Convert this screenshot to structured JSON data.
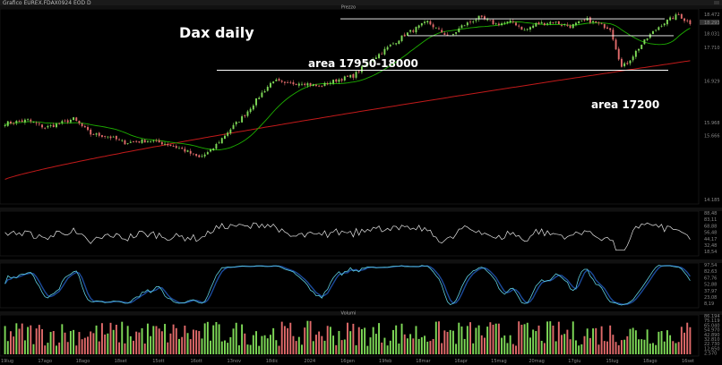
{
  "window": {
    "title": "Grafico EUREX.FDAX0924 EOD D"
  },
  "panels": {
    "price_title": "Prezzo",
    "volume_title": "Volumi"
  },
  "annotations": {
    "title": "Dax daily",
    "upper_level": "area 17950-18000",
    "lower_level": "area 17200"
  },
  "colors": {
    "background": "#000000",
    "up_candle": "#7ED957",
    "down_candle": "#E06A6A",
    "short_ma": "#1DB000",
    "long_ma": "#C21A1A",
    "rsi": "#E6E6E6",
    "stoch_k": "#5FD0E0",
    "stoch_d": "#1B4A9C",
    "level_lines": "#FFFFFF"
  },
  "chart_data": [
    {
      "type": "candlestick",
      "panel": "price",
      "y_ticks": [
        "18.472",
        "18.031",
        "17.710",
        "16.929",
        "15.968",
        "15.666",
        "14.185"
      ],
      "y_ticks_values": [
        18472,
        18031,
        17710,
        16929,
        15968,
        15666,
        14185
      ],
      "last_price_label": "18.293",
      "x_labels": [
        "19lug",
        "17ago",
        "18ago",
        "18set",
        "15ott",
        "16ott",
        "13nov",
        "18dic",
        "2024",
        "16gen",
        "19feb",
        "18mar",
        "16apr",
        "15mag",
        "20mag",
        "17giu",
        "15lug",
        "18ago",
        "16set"
      ],
      "waypoints": [
        [
          0,
          15950
        ],
        [
          8,
          16020
        ],
        [
          14,
          15850
        ],
        [
          18,
          15920
        ],
        [
          24,
          16050
        ],
        [
          30,
          15700
        ],
        [
          36,
          15650
        ],
        [
          42,
          15500
        ],
        [
          50,
          15550
        ],
        [
          56,
          15480
        ],
        [
          62,
          15350
        ],
        [
          68,
          15150
        ],
        [
          72,
          15300
        ],
        [
          78,
          15750
        ],
        [
          84,
          16150
        ],
        [
          90,
          16650
        ],
        [
          94,
          16950
        ],
        [
          98,
          16850
        ],
        [
          104,
          16900
        ],
        [
          110,
          16800
        ],
        [
          116,
          16950
        ],
        [
          122,
          17050
        ],
        [
          128,
          17400
        ],
        [
          134,
          17700
        ],
        [
          140,
          18000
        ],
        [
          144,
          18150
        ],
        [
          148,
          18300
        ],
        [
          152,
          18100
        ],
        [
          156,
          17950
        ],
        [
          160,
          18200
        ],
        [
          166,
          18400
        ],
        [
          172,
          18250
        ],
        [
          178,
          18300
        ],
        [
          182,
          18100
        ],
        [
          186,
          18250
        ],
        [
          192,
          18300
        ],
        [
          198,
          18200
        ],
        [
          204,
          18350
        ],
        [
          208,
          18250
        ],
        [
          212,
          18150
        ],
        [
          214,
          17700
        ],
        [
          216,
          17250
        ],
        [
          218,
          17350
        ],
        [
          222,
          17700
        ],
        [
          226,
          18000
        ],
        [
          230,
          18250
        ],
        [
          234,
          18400
        ],
        [
          236,
          18470
        ],
        [
          238,
          18350
        ],
        [
          240,
          18280
        ]
      ],
      "ma_short_period": 20,
      "ma_long_period": 200,
      "annotation_levels": [
        18372,
        17980,
        17180
      ]
    },
    {
      "type": "line",
      "panel": "rsi",
      "y_ticks": [
        "88,48",
        "83,11",
        "68,88",
        "56,48",
        "44,17",
        "32,48",
        "18,54"
      ],
      "y_ticks_values": [
        88.48,
        83.11,
        68.88,
        56.48,
        44.17,
        32.48,
        18.54
      ],
      "ylim": [
        10,
        95
      ]
    },
    {
      "type": "line",
      "panel": "stochastic",
      "y_ticks": [
        "97,54",
        "82,63",
        "67,76",
        "52,88",
        "37,97",
        "23,08",
        "8,19"
      ],
      "y_ticks_values": [
        97.54,
        82.63,
        67.76,
        52.88,
        37.97,
        23.08,
        8.19
      ],
      "ylim": [
        0,
        100
      ]
    },
    {
      "type": "bar",
      "panel": "volume",
      "y_ticks": [
        "86.194",
        "75.119",
        "65.040",
        "54.970",
        "42.890",
        "32.810",
        "22.730",
        "12.650",
        "2.570"
      ],
      "y_ticks_values": [
        86194,
        75119,
        65040,
        54970,
        42890,
        32810,
        22730,
        12650,
        2570
      ],
      "ylim": [
        0,
        90000
      ]
    }
  ]
}
